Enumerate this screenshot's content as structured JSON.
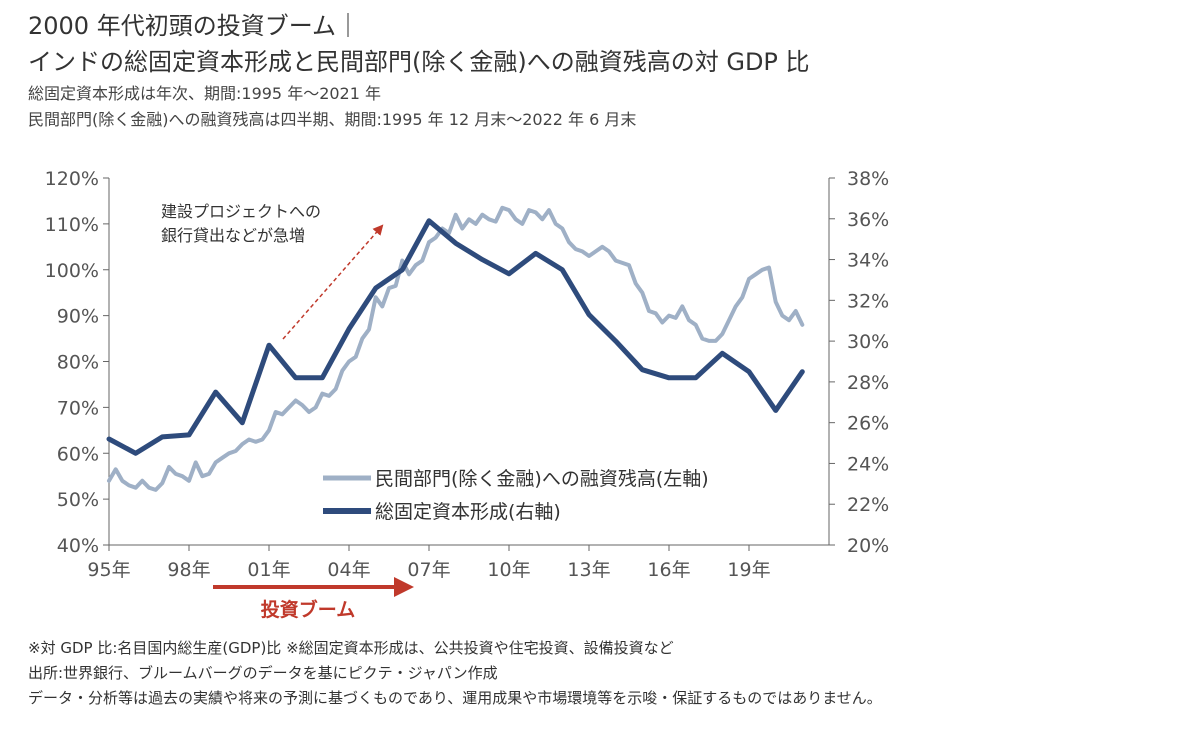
{
  "header": {
    "title_line1": "2000 年代初頭の投資ブーム｜",
    "title_line2": "インドの総固定資本形成と民間部門(除く金融)への融資残高の対 GDP 比",
    "sub1": "総固定資本形成は年次、期間:1995 年～2021 年",
    "sub2": "民間部門(除く金融)への融資残高は四半期、期間:1995 年 12 月末～2022 年 6 月末"
  },
  "notes": {
    "n1": "※対 GDP 比:名目国内総生産(GDP)比 ※総固定資本形成は、公共投資や住宅投資、設備投資など",
    "n2": "出所:世界銀行、ブルームバーグのデータを基にピクテ・ジャパン作成",
    "n3": "データ・分析等は過去の実績や将来の予測に基づくものであり、運用成果や市場環境等を示唆・保証するものではありません。"
  },
  "annotations": {
    "surge_line1": "建設プロジェクトへの",
    "surge_line2": "銀行貸出などが急増",
    "boom_label": "投資ブーム"
  },
  "colors": {
    "loans": "#9fb0c6",
    "gfcf": "#2e4b7c",
    "annotation": "#c0392b"
  },
  "chart_data": {
    "type": "line",
    "x_tick_labels": [
      "95年",
      "98年",
      "01年",
      "04年",
      "07年",
      "10年",
      "13年",
      "16年",
      "19年"
    ],
    "x_ticks": [
      1995,
      1998,
      2001,
      2004,
      2007,
      2010,
      2013,
      2016,
      2019
    ],
    "xlim": [
      1995,
      2022
    ],
    "y_left": {
      "ylim": [
        40,
        120
      ],
      "ticks": [
        40,
        50,
        60,
        70,
        80,
        90,
        100,
        110,
        120
      ],
      "tick_labels": [
        "40%",
        "50%",
        "60%",
        "70%",
        "80%",
        "90%",
        "100%",
        "110%",
        "120%"
      ]
    },
    "y_right": {
      "ylim": [
        20,
        38
      ],
      "ticks": [
        20,
        22,
        24,
        26,
        28,
        30,
        32,
        34,
        36,
        38
      ],
      "tick_labels": [
        "20%",
        "22%",
        "24%",
        "26%",
        "28%",
        "30%",
        "32%",
        "34%",
        "36%",
        "38%"
      ]
    },
    "legend_position": "bottom-center",
    "series": [
      {
        "name": "民間部門(除く金融)への融資残高(左軸)",
        "axis": "left",
        "points": [
          [
            1995.0,
            54
          ],
          [
            1995.25,
            56.5
          ],
          [
            1995.5,
            54
          ],
          [
            1995.75,
            53
          ],
          [
            1996.0,
            52.5
          ],
          [
            1996.25,
            54
          ],
          [
            1996.5,
            52.5
          ],
          [
            1996.75,
            52
          ],
          [
            1997.0,
            53.5
          ],
          [
            1997.25,
            57
          ],
          [
            1997.5,
            55.5
          ],
          [
            1997.75,
            55
          ],
          [
            1998.0,
            54
          ],
          [
            1998.25,
            58
          ],
          [
            1998.5,
            55
          ],
          [
            1998.75,
            55.5
          ],
          [
            1999.0,
            58
          ],
          [
            1999.25,
            59
          ],
          [
            1999.5,
            60
          ],
          [
            1999.75,
            60.5
          ],
          [
            2000.0,
            62
          ],
          [
            2000.25,
            63
          ],
          [
            2000.5,
            62.5
          ],
          [
            2000.75,
            63
          ],
          [
            2001.0,
            65
          ],
          [
            2001.25,
            69
          ],
          [
            2001.5,
            68.5
          ],
          [
            2001.75,
            70
          ],
          [
            2002.0,
            71.5
          ],
          [
            2002.25,
            70.5
          ],
          [
            2002.5,
            69
          ],
          [
            2002.75,
            70
          ],
          [
            2003.0,
            73
          ],
          [
            2003.25,
            72.5
          ],
          [
            2003.5,
            74
          ],
          [
            2003.75,
            78
          ],
          [
            2004.0,
            80
          ],
          [
            2004.25,
            81
          ],
          [
            2004.5,
            85
          ],
          [
            2004.75,
            87
          ],
          [
            2005.0,
            94
          ],
          [
            2005.25,
            92
          ],
          [
            2005.5,
            96
          ],
          [
            2005.75,
            96.5
          ],
          [
            2006.0,
            102
          ],
          [
            2006.25,
            99
          ],
          [
            2006.5,
            101
          ],
          [
            2006.75,
            102
          ],
          [
            2007.0,
            106
          ],
          [
            2007.25,
            107
          ],
          [
            2007.5,
            109
          ],
          [
            2007.75,
            108
          ],
          [
            2008.0,
            112
          ],
          [
            2008.25,
            109
          ],
          [
            2008.5,
            111
          ],
          [
            2008.75,
            110
          ],
          [
            2009.0,
            112
          ],
          [
            2009.25,
            111
          ],
          [
            2009.5,
            110.5
          ],
          [
            2009.75,
            113.5
          ],
          [
            2010.0,
            113
          ],
          [
            2010.25,
            111
          ],
          [
            2010.5,
            110
          ],
          [
            2010.75,
            113
          ],
          [
            2011.0,
            112.5
          ],
          [
            2011.25,
            111
          ],
          [
            2011.5,
            113
          ],
          [
            2011.75,
            110
          ],
          [
            2012.0,
            109
          ],
          [
            2012.25,
            106
          ],
          [
            2012.5,
            104.5
          ],
          [
            2012.75,
            104
          ],
          [
            2013.0,
            103
          ],
          [
            2013.25,
            104
          ],
          [
            2013.5,
            105
          ],
          [
            2013.75,
            104
          ],
          [
            2014.0,
            102
          ],
          [
            2014.25,
            101.5
          ],
          [
            2014.5,
            101
          ],
          [
            2014.75,
            97
          ],
          [
            2015.0,
            95
          ],
          [
            2015.25,
            91
          ],
          [
            2015.5,
            90.5
          ],
          [
            2015.75,
            88.5
          ],
          [
            2016.0,
            90
          ],
          [
            2016.25,
            89.5
          ],
          [
            2016.5,
            92
          ],
          [
            2016.75,
            89
          ],
          [
            2017.0,
            88
          ],
          [
            2017.25,
            85
          ],
          [
            2017.5,
            84.5
          ],
          [
            2017.75,
            84.5
          ],
          [
            2018.0,
            86
          ],
          [
            2018.25,
            89
          ],
          [
            2018.5,
            92
          ],
          [
            2018.75,
            94
          ],
          [
            2019.0,
            98
          ],
          [
            2019.25,
            99
          ],
          [
            2019.5,
            100
          ],
          [
            2019.75,
            100.5
          ],
          [
            2020.0,
            93
          ],
          [
            2020.25,
            90
          ],
          [
            2020.5,
            89
          ],
          [
            2020.75,
            91
          ],
          [
            2021.0,
            88
          ]
        ]
      },
      {
        "name": "総固定資本形成(右軸)",
        "axis": "right",
        "points": [
          [
            1995,
            25.2
          ],
          [
            1996,
            24.5
          ],
          [
            1997,
            25.3
          ],
          [
            1998,
            25.4
          ],
          [
            1999,
            27.5
          ],
          [
            2000,
            26.0
          ],
          [
            2001,
            29.8
          ],
          [
            2002,
            28.2
          ],
          [
            2003,
            28.2
          ],
          [
            2004,
            30.6
          ],
          [
            2005,
            32.6
          ],
          [
            2006,
            33.5
          ],
          [
            2007,
            35.9
          ],
          [
            2008,
            34.8
          ],
          [
            2009,
            34.0
          ],
          [
            2010,
            33.3
          ],
          [
            2011,
            34.3
          ],
          [
            2012,
            33.5
          ],
          [
            2013,
            31.3
          ],
          [
            2014,
            30.0
          ],
          [
            2015,
            28.6
          ],
          [
            2016,
            28.2
          ],
          [
            2017,
            28.2
          ],
          [
            2018,
            29.4
          ],
          [
            2019,
            28.5
          ],
          [
            2020,
            26.6
          ],
          [
            2021,
            28.5
          ]
        ]
      }
    ]
  }
}
